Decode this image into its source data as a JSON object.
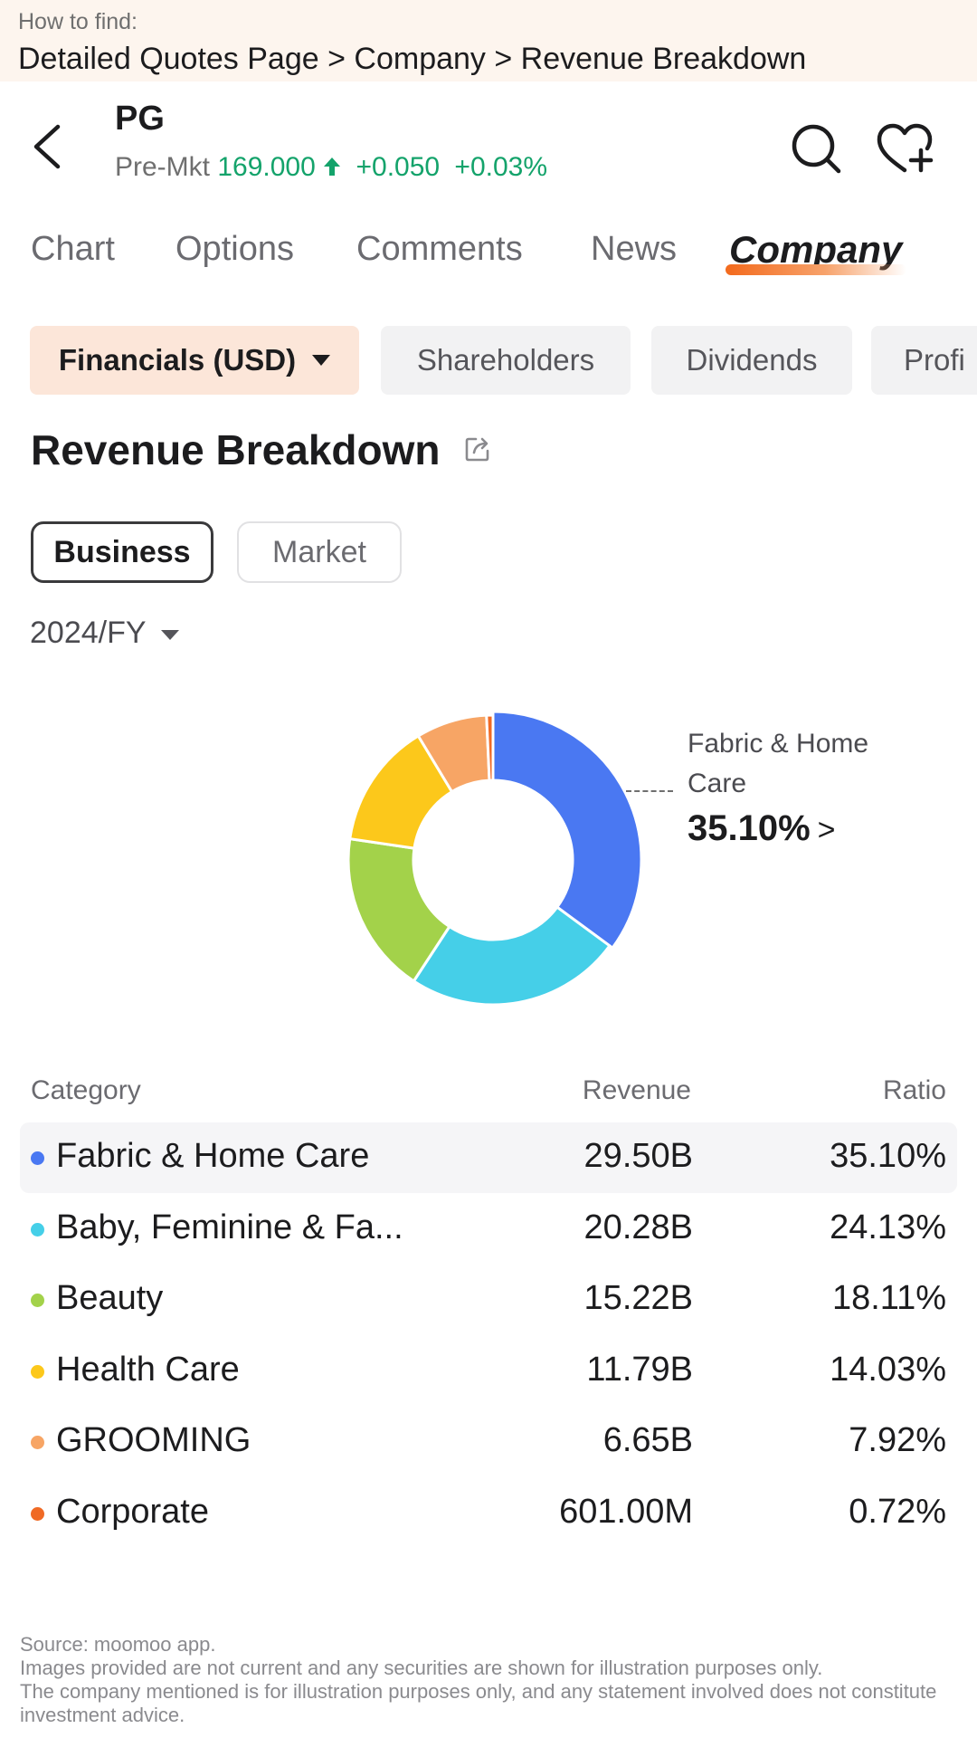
{
  "howto": {
    "label": "How to find:",
    "path": "Detailed Quotes Page > Company > Revenue Breakdown"
  },
  "header": {
    "ticker": "PG",
    "session_label": "Pre-Mkt",
    "price": "169.000",
    "change": "+0.050",
    "change_pct": "+0.03%",
    "direction_icon": "arrow-up-icon",
    "up_color": "#14a36b"
  },
  "tabs": [
    {
      "label": "Chart",
      "active": false
    },
    {
      "label": "Options",
      "active": false
    },
    {
      "label": "Comments",
      "active": false
    },
    {
      "label": "News",
      "active": false
    },
    {
      "label": "Company",
      "active": true
    }
  ],
  "subtabs": [
    {
      "label": "Financials (USD)",
      "active": true
    },
    {
      "label": "Shareholders",
      "active": false
    },
    {
      "label": "Dividends",
      "active": false
    },
    {
      "label": "Profi",
      "active": false
    }
  ],
  "section": {
    "title": "Revenue Breakdown",
    "share_icon": "share-icon"
  },
  "segments": [
    {
      "label": "Business",
      "active": true
    },
    {
      "label": "Market",
      "active": false
    }
  ],
  "period": {
    "selected": "2024/FY"
  },
  "chart_data": {
    "type": "pie",
    "style": "donut",
    "categories": [
      "Fabric & Home Care",
      "Baby, Feminine & Fa...",
      "Beauty",
      "Health Care",
      "GROOMING",
      "Corporate"
    ],
    "values": [
      35.1,
      24.13,
      18.11,
      14.03,
      7.92,
      0.72
    ],
    "colors": [
      "#4a78f2",
      "#45cfe8",
      "#a3d24a",
      "#fcc81b",
      "#f7a565",
      "#f06a25"
    ],
    "highlighted": "Fabric & Home Care"
  },
  "callout": {
    "name": "Fabric & Home Care",
    "pct": "35.10%",
    "chevron": ">"
  },
  "table": {
    "headers": [
      "Category",
      "Revenue",
      "Ratio"
    ],
    "rows": [
      {
        "category": "Fabric & Home Care",
        "revenue": "29.50B",
        "ratio": "35.10%",
        "color": "#4a78f2"
      },
      {
        "category": "Baby, Feminine & Fa...",
        "revenue": "20.28B",
        "ratio": "24.13%",
        "color": "#45cfe8"
      },
      {
        "category": "Beauty",
        "revenue": "15.22B",
        "ratio": "18.11%",
        "color": "#a3d24a"
      },
      {
        "category": "Health Care",
        "revenue": "11.79B",
        "ratio": "14.03%",
        "color": "#fcc81b"
      },
      {
        "category": "GROOMING",
        "revenue": "6.65B",
        "ratio": "7.92%",
        "color": "#f7a565"
      },
      {
        "category": "Corporate",
        "revenue": "601.00M",
        "ratio": "0.72%",
        "color": "#f06a25"
      }
    ]
  },
  "disclaimer": [
    "Source: moomoo app.",
    "Images provided are not current and any securities are shown for illustration purposes only.",
    "The company mentioned is for illustration purposes only, and any statement involved does not constitute",
    "investment advice."
  ]
}
